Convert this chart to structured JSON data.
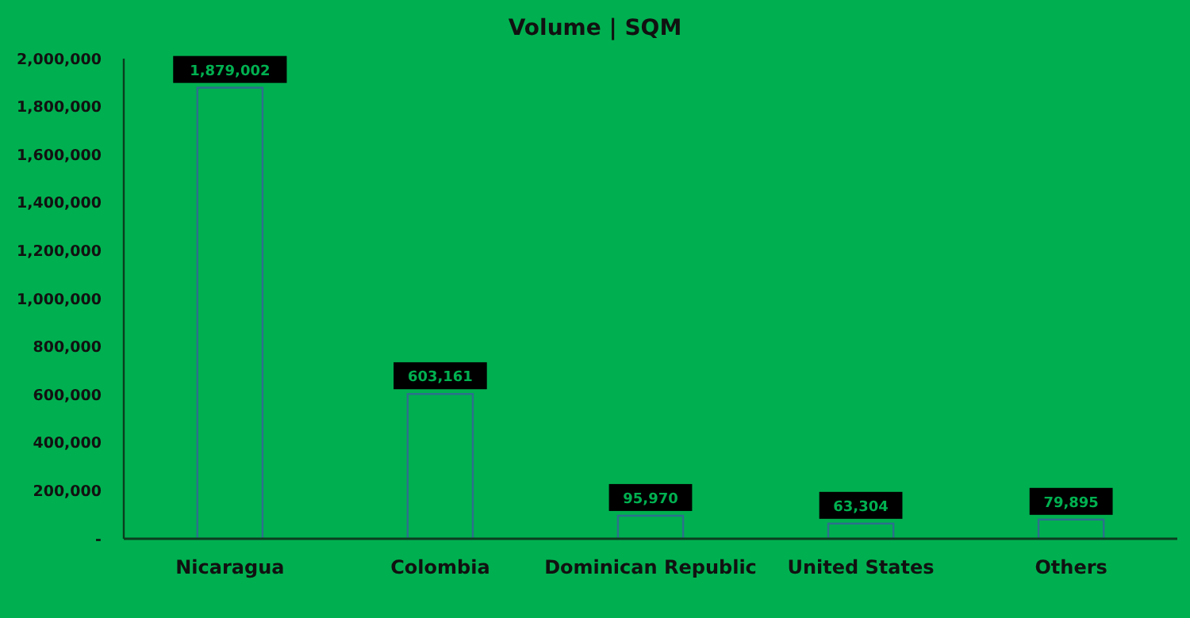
{
  "chart_data": {
    "type": "bar",
    "title": "Volume | SQM",
    "categories": [
      "Nicaragua",
      "Colombia",
      "Dominican Republic",
      "United States",
      "Others"
    ],
    "values": [
      1879002,
      603161,
      95970,
      63304,
      79895
    ],
    "color": "#2e6f8e",
    "ylim": [
      0,
      2000000
    ],
    "yticks": [
      {
        "value": 0,
        "label": "-"
      },
      {
        "value": 200000,
        "label": "200,000"
      },
      {
        "value": 400000,
        "label": "400,000"
      },
      {
        "value": 600000,
        "label": "600,000"
      },
      {
        "value": 800000,
        "label": "800,000"
      },
      {
        "value": 1000000,
        "label": "1,000,000"
      },
      {
        "value": 1200000,
        "label": "1,200,000"
      },
      {
        "value": 1400000,
        "label": "1,400,000"
      },
      {
        "value": 1600000,
        "label": "1,600,000"
      },
      {
        "value": 1800000,
        "label": "1,800,000"
      },
      {
        "value": 2000000,
        "label": "2,000,000"
      }
    ],
    "value_labels": [
      "1,879,002",
      "603,161",
      "95,970",
      "63,304",
      "79,895"
    ]
  }
}
